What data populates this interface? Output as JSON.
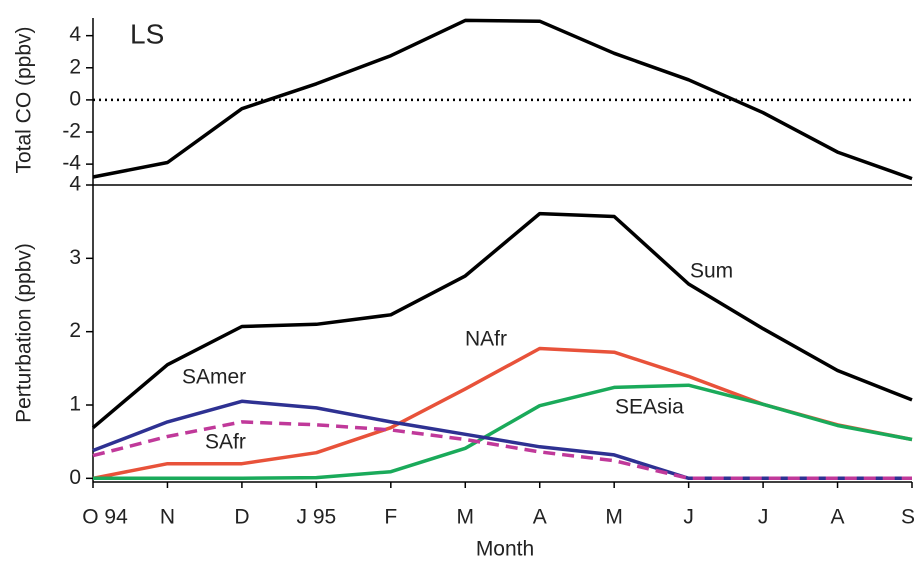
{
  "chart_data": [
    {
      "type": "line",
      "annotation": "LS",
      "y_label": "Total CO (ppbv)",
      "color": "#000000",
      "values": [
        -4.8,
        -3.9,
        -0.55,
        1.0,
        2.75,
        4.95,
        4.9,
        2.9,
        1.25,
        -0.8,
        -3.25,
        -4.9
      ],
      "ylim": [
        -5.3,
        5.1
      ],
      "yticks": [
        -4,
        -2,
        0,
        2,
        4
      ],
      "reference_line": 0
    },
    {
      "type": "line",
      "x_label": "Month",
      "y_label": "Perturbation (ppbv)",
      "categories": [
        "O 94",
        "N",
        "D",
        "J 95",
        "F",
        "M",
        "A",
        "M",
        "J",
        "J",
        "A",
        "S"
      ],
      "ylim": [
        -0.05,
        4
      ],
      "yticks": [
        0,
        1,
        2,
        3,
        4
      ],
      "series": [
        {
          "name": "Sum",
          "color": "#000000",
          "dash": false,
          "values": [
            0.69,
            1.55,
            2.07,
            2.1,
            2.23,
            2.76,
            3.61,
            3.57,
            2.65,
            2.04,
            1.47,
            1.07
          ]
        },
        {
          "name": "NAfr",
          "color": "#e8523a",
          "dash": false,
          "values": [
            0,
            0.2,
            0.2,
            0.35,
            0.69,
            1.22,
            1.77,
            1.72,
            1.39,
            1.01,
            0.73,
            0.53
          ]
        },
        {
          "name": "SEAsia",
          "color": "#1aaa5a",
          "dash": false,
          "values": [
            0,
            0,
            0,
            0.01,
            0.09,
            0.41,
            0.99,
            1.24,
            1.27,
            1.01,
            0.72,
            0.53
          ]
        },
        {
          "name": "SAmer",
          "color": "#2e3192",
          "dash": false,
          "values": [
            0.38,
            0.77,
            1.05,
            0.96,
            0.77,
            0.6,
            0.43,
            0.32,
            0,
            0,
            0,
            0
          ]
        },
        {
          "name": "SAfr",
          "color": "#c0399a",
          "dash": true,
          "values": [
            0.31,
            0.57,
            0.77,
            0.73,
            0.66,
            0.53,
            0.36,
            0.24,
            0,
            0,
            0,
            0
          ]
        }
      ]
    }
  ]
}
